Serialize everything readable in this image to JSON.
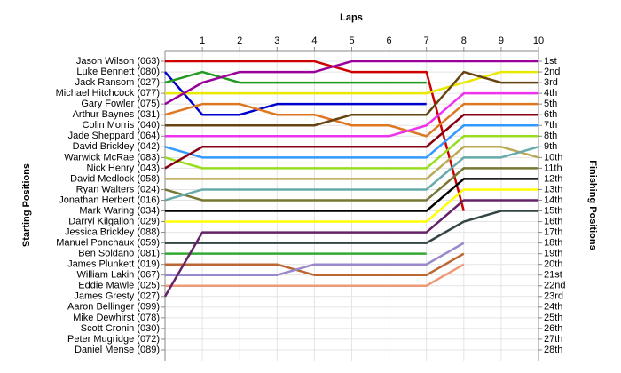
{
  "chart_data": {
    "type": "line",
    "title": "Laps",
    "y_label": "Starting Positions",
    "y2_label": "Finishing Positions",
    "x": [
      0,
      1,
      2,
      3,
      4,
      5,
      6,
      7,
      8,
      9,
      10
    ],
    "xlim": [
      0,
      10
    ],
    "xticks": [
      1,
      2,
      3,
      4,
      5,
      6,
      7,
      8,
      9,
      10
    ],
    "ylim": [
      0,
      29
    ],
    "y_inverted": true,
    "grid": true,
    "yticks": [
      {
        "value": 1,
        "label": "Jason Wilson (063)"
      },
      {
        "value": 2,
        "label": "Luke Bennett (080)"
      },
      {
        "value": 3,
        "label": "Jack Ransom (027)"
      },
      {
        "value": 4,
        "label": "Michael Hitchcock (077)"
      },
      {
        "value": 5,
        "label": "Gary Fowler (075)"
      },
      {
        "value": 6,
        "label": "Arthur Baynes (031)"
      },
      {
        "value": 7,
        "label": "Colin Morris (040)"
      },
      {
        "value": 8,
        "label": "Jade Sheppard (064)"
      },
      {
        "value": 9,
        "label": "David Brickley (042)"
      },
      {
        "value": 10,
        "label": "Warwick McRae (083)"
      },
      {
        "value": 11,
        "label": "Nick Henry (043)"
      },
      {
        "value": 12,
        "label": "David Medlock (058)"
      },
      {
        "value": 13,
        "label": "Ryan Walters (024)"
      },
      {
        "value": 14,
        "label": "Jonathan Herbert (016)"
      },
      {
        "value": 15,
        "label": "Mark Waring (034)"
      },
      {
        "value": 16,
        "label": "Darryl Kilgallon (029)"
      },
      {
        "value": 17,
        "label": "Jessica Brickley (088)"
      },
      {
        "value": 18,
        "label": "Manuel Ponchaux (059)"
      },
      {
        "value": 19,
        "label": "Ben Soldano (081)"
      },
      {
        "value": 20,
        "label": "James Plunkett (019)"
      },
      {
        "value": 21,
        "label": "William Lakin (067)"
      },
      {
        "value": 22,
        "label": "Eddie Mawle (025)"
      },
      {
        "value": 23,
        "label": "James Gresty (027)"
      },
      {
        "value": 24,
        "label": "Aaron Bellinger (099)"
      },
      {
        "value": 25,
        "label": "Mike Dewhirst (078)"
      },
      {
        "value": 26,
        "label": "Scott Cronin (030)"
      },
      {
        "value": 27,
        "label": "Peter Mugridge (072)"
      },
      {
        "value": 28,
        "label": "Daniel Mense (089)"
      }
    ],
    "y2lim": [
      0,
      29
    ],
    "y2ticks": [
      {
        "value": 1,
        "label": "1st"
      },
      {
        "value": 2,
        "label": "2nd"
      },
      {
        "value": 3,
        "label": "3rd"
      },
      {
        "value": 4,
        "label": "4th"
      },
      {
        "value": 5,
        "label": "5th"
      },
      {
        "value": 6,
        "label": "6th"
      },
      {
        "value": 7,
        "label": "7th"
      },
      {
        "value": 8,
        "label": "8th"
      },
      {
        "value": 9,
        "label": "9th"
      },
      {
        "value": 10,
        "label": "10th"
      },
      {
        "value": 11,
        "label": "11th"
      },
      {
        "value": 12,
        "label": "12th"
      },
      {
        "value": 13,
        "label": "13th"
      },
      {
        "value": 14,
        "label": "14th"
      },
      {
        "value": 15,
        "label": "15th"
      },
      {
        "value": 16,
        "label": "16th"
      },
      {
        "value": 17,
        "label": "17th"
      },
      {
        "value": 18,
        "label": "18th"
      },
      {
        "value": 19,
        "label": "19th"
      },
      {
        "value": 20,
        "label": "20th"
      },
      {
        "value": 21,
        "label": "21st"
      },
      {
        "value": 22,
        "label": "22nd"
      },
      {
        "value": 23,
        "label": "23rd"
      },
      {
        "value": 24,
        "label": "24th"
      },
      {
        "value": 25,
        "label": "25th"
      },
      {
        "value": 26,
        "label": "26th"
      },
      {
        "value": 27,
        "label": "27th"
      },
      {
        "value": 28,
        "label": "28th"
      }
    ],
    "series": [
      {
        "color": "#cc0000",
        "values": [
          1,
          1,
          1,
          1,
          1,
          2,
          2,
          2,
          15,
          null,
          null
        ]
      },
      {
        "color": "#0000cc",
        "values": [
          2,
          6,
          6,
          5,
          5,
          5,
          5,
          5,
          null,
          null,
          null
        ]
      },
      {
        "color": "#229922",
        "values": [
          3,
          2,
          3,
          3,
          3,
          3,
          3,
          3,
          null,
          null,
          null
        ]
      },
      {
        "color": "#e8e800",
        "values": [
          4,
          4,
          4,
          4,
          4,
          4,
          4,
          4,
          3,
          2,
          2
        ]
      },
      {
        "color": "#990099",
        "values": [
          5,
          3,
          2,
          2,
          2,
          1,
          1,
          1,
          1,
          1,
          1
        ]
      },
      {
        "color": "#dd7722",
        "values": [
          6,
          5,
          5,
          6,
          6,
          7,
          7,
          8,
          5,
          5,
          5
        ]
      },
      {
        "color": "#664411",
        "values": [
          7,
          7,
          7,
          7,
          7,
          6,
          6,
          6,
          2,
          3,
          3
        ]
      },
      {
        "color": "#ee33ee",
        "values": [
          8,
          8,
          8,
          8,
          8,
          8,
          8,
          7,
          4,
          4,
          4
        ]
      },
      {
        "color": "#3399ff",
        "values": [
          9,
          10,
          10,
          10,
          10,
          10,
          10,
          10,
          7,
          7,
          7
        ]
      },
      {
        "color": "#99dd22",
        "values": [
          10,
          11,
          11,
          11,
          11,
          11,
          11,
          11,
          8,
          8,
          8
        ]
      },
      {
        "color": "#880011",
        "values": [
          11,
          9,
          9,
          9,
          9,
          9,
          9,
          9,
          6,
          6,
          6
        ]
      },
      {
        "color": "#bbaa55",
        "values": [
          12,
          12,
          12,
          12,
          12,
          12,
          12,
          12,
          9,
          9,
          10
        ]
      },
      {
        "color": "#777733",
        "values": [
          13,
          14,
          14,
          14,
          14,
          14,
          14,
          14,
          11,
          11,
          11
        ]
      },
      {
        "color": "#66aaaa",
        "values": [
          14,
          13,
          13,
          13,
          13,
          13,
          13,
          13,
          10,
          10,
          9
        ]
      },
      {
        "color": "#000000",
        "values": [
          15,
          15,
          15,
          15,
          15,
          15,
          15,
          15,
          12,
          12,
          12
        ]
      },
      {
        "color": "#ffff00",
        "values": [
          16,
          16,
          16,
          16,
          16,
          16,
          16,
          16,
          13,
          13,
          13
        ]
      },
      {
        "color": "#553377",
        "values": [
          17,
          null,
          null,
          null,
          null,
          null,
          null,
          null,
          null,
          null,
          null
        ]
      },
      {
        "color": "#334444",
        "values": [
          18,
          18,
          18,
          18,
          18,
          18,
          18,
          18,
          16,
          15,
          15
        ]
      },
      {
        "color": "#33aa33",
        "values": [
          19,
          19,
          19,
          19,
          19,
          19,
          19,
          19,
          null,
          null,
          null
        ]
      },
      {
        "color": "#bb6633",
        "values": [
          20,
          20,
          20,
          20,
          21,
          21,
          21,
          21,
          19,
          null,
          null
        ]
      },
      {
        "color": "#9988cc",
        "values": [
          21,
          21,
          21,
          21,
          20,
          20,
          20,
          20,
          18,
          null,
          null
        ]
      },
      {
        "color": "#ee9977",
        "values": [
          22,
          22,
          22,
          22,
          22,
          22,
          22,
          22,
          20,
          null,
          null
        ]
      },
      {
        "color": "#662266",
        "values": [
          23,
          17,
          17,
          17,
          17,
          17,
          17,
          17,
          14,
          14,
          14
        ]
      }
    ]
  }
}
